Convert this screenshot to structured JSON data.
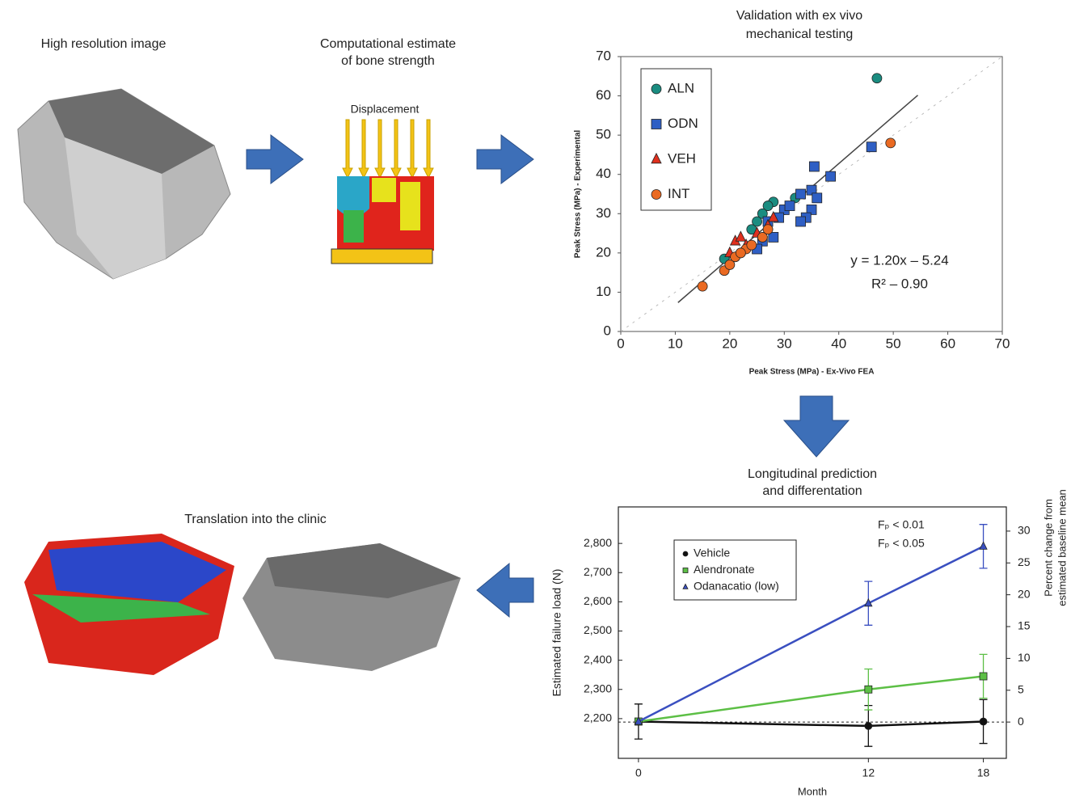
{
  "panels": {
    "image_title": "High resolution image",
    "compute_title": [
      "Computational estimate",
      "of bone strength"
    ],
    "displacement": "Displacement",
    "clinic_title": "Translation into the clinic"
  },
  "chart_data": [
    {
      "type": "scatter",
      "title": [
        "Validation with ex vivo",
        "mechanical testing"
      ],
      "xlabel": "Peak Stress (MPa) - Ex-Vivo FEA",
      "ylabel": "Peak Stress (MPa) - Experimental",
      "xlim": [
        0,
        70
      ],
      "ylim": [
        0,
        70
      ],
      "xticks": [
        0,
        10,
        20,
        30,
        40,
        50,
        60,
        70
      ],
      "yticks": [
        0,
        10,
        20,
        30,
        40,
        50,
        60,
        70
      ],
      "series": [
        {
          "name": "ALN",
          "color": "#1a8c80",
          "marker": "circle",
          "x": [
            47,
            28,
            27,
            32,
            25,
            21,
            19,
            24,
            26,
            30,
            22
          ],
          "values": [
            64.5,
            33,
            32,
            34,
            28,
            19,
            18.5,
            26,
            30,
            31,
            20
          ]
        },
        {
          "name": "ODN",
          "color": "#2f5fc4",
          "marker": "square",
          "x": [
            46,
            35.5,
            38.5,
            35,
            36,
            33,
            30,
            31,
            29,
            27,
            35,
            34,
            28,
            26,
            25,
            33
          ],
          "values": [
            47,
            42,
            39.5,
            36,
            34,
            35,
            31,
            32,
            29,
            28,
            31,
            29,
            24,
            23,
            21,
            28
          ]
        },
        {
          "name": "VEH",
          "color": "#e0301e",
          "marker": "triangle",
          "x": [
            21,
            22,
            25,
            27,
            28,
            23,
            20
          ],
          "values": [
            23,
            24,
            25,
            27,
            29,
            22,
            20
          ]
        },
        {
          "name": "INT",
          "color": "#ea6a22",
          "marker": "circle",
          "x": [
            49.5,
            15,
            19,
            20,
            21,
            23,
            24,
            26,
            27,
            22
          ],
          "values": [
            48,
            11.5,
            15.5,
            17,
            19,
            21,
            22,
            24,
            26,
            20
          ]
        }
      ],
      "annotations": [
        "y = 1.20x – 5.24",
        "R² – 0.90"
      ],
      "fit": {
        "slope": 1.2,
        "intercept": -5.24,
        "x": [
          10.5,
          54.5
        ]
      }
    },
    {
      "type": "line",
      "title": [
        "Longitudinal prediction",
        "and differentation"
      ],
      "xlabel": "Month",
      "ylabel": "Estimated failure load (N)",
      "y2label": [
        "Percent change from",
        "estimated baseline mean"
      ],
      "x": [
        0,
        12,
        18
      ],
      "xlim": [
        -1.05,
        19.2
      ],
      "xticks": [
        0,
        12,
        18
      ],
      "ylim": [
        2064,
        2925
      ],
      "yticks": [
        {
          "value": 2200,
          "label": "2,200"
        },
        {
          "value": 2300,
          "label": "2,300"
        },
        {
          "value": 2400,
          "label": "2,400"
        },
        {
          "value": 2500,
          "label": "2,500"
        },
        {
          "value": 2600,
          "label": "2,600"
        },
        {
          "value": 2700,
          "label": "2,700"
        },
        {
          "value": 2800,
          "label": "2,800"
        }
      ],
      "y2lim": [
        -5.7,
        33.8
      ],
      "y2ticks": [
        0,
        5,
        10,
        15,
        20,
        25,
        30
      ],
      "series": [
        {
          "name": "Vehicle",
          "color": "#111111",
          "marker": "circle",
          "values": [
            2190,
            2175,
            2190
          ],
          "errors": [
            60,
            70,
            75
          ]
        },
        {
          "name": "Alendronate",
          "color": "#5cbf45",
          "marker": "square",
          "values": [
            2190,
            2300,
            2345
          ],
          "errors": [
            0,
            70,
            75
          ]
        },
        {
          "name": "Odanacatio (low)",
          "color": "#3a4fc0",
          "marker": "triangle",
          "values": [
            2190,
            2595,
            2790
          ],
          "errors": [
            0,
            75,
            75
          ]
        }
      ],
      "annotations": [
        "Fₚ < 0.01",
        "Fₚ < 0.05"
      ]
    }
  ]
}
